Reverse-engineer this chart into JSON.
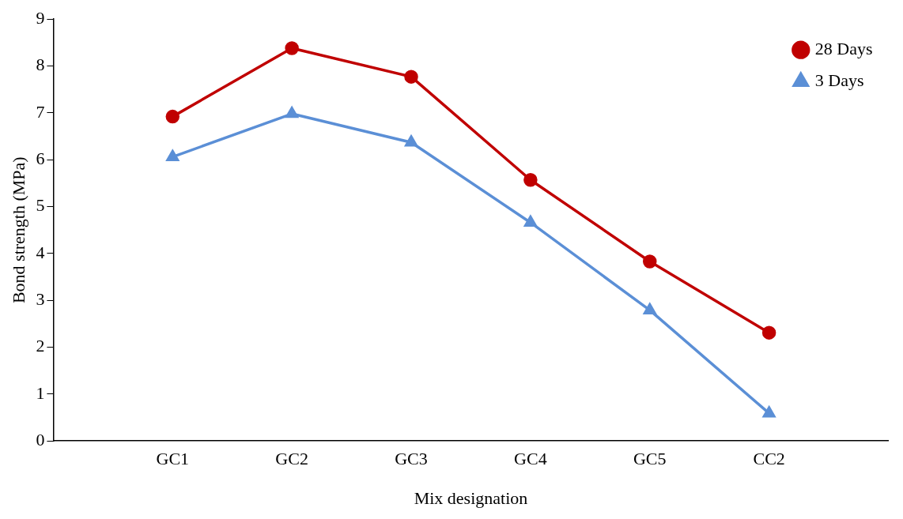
{
  "chart_data": {
    "type": "line",
    "xlabel": "Mix designation",
    "ylabel": "Bond strength (MPa)",
    "categories": [
      null,
      "GC1",
      "GC2",
      "GC3",
      "GC4",
      "GC5",
      "CC2",
      null
    ],
    "series": [
      {
        "name": "28 Days",
        "color": "#c00000",
        "marker": "circle",
        "values": [
          null,
          6.92,
          8.38,
          7.77,
          5.57,
          3.83,
          2.31,
          null
        ]
      },
      {
        "name": "3 Days",
        "color": "#5b8fd6",
        "marker": "triangle",
        "values": [
          null,
          6.06,
          6.98,
          6.37,
          4.66,
          2.79,
          0.59,
          null
        ]
      }
    ],
    "ylim": [
      0,
      9
    ],
    "yticks": [
      0,
      1,
      2,
      3,
      4,
      5,
      6,
      7,
      8,
      9
    ],
    "grid": false,
    "legend": "top right"
  }
}
